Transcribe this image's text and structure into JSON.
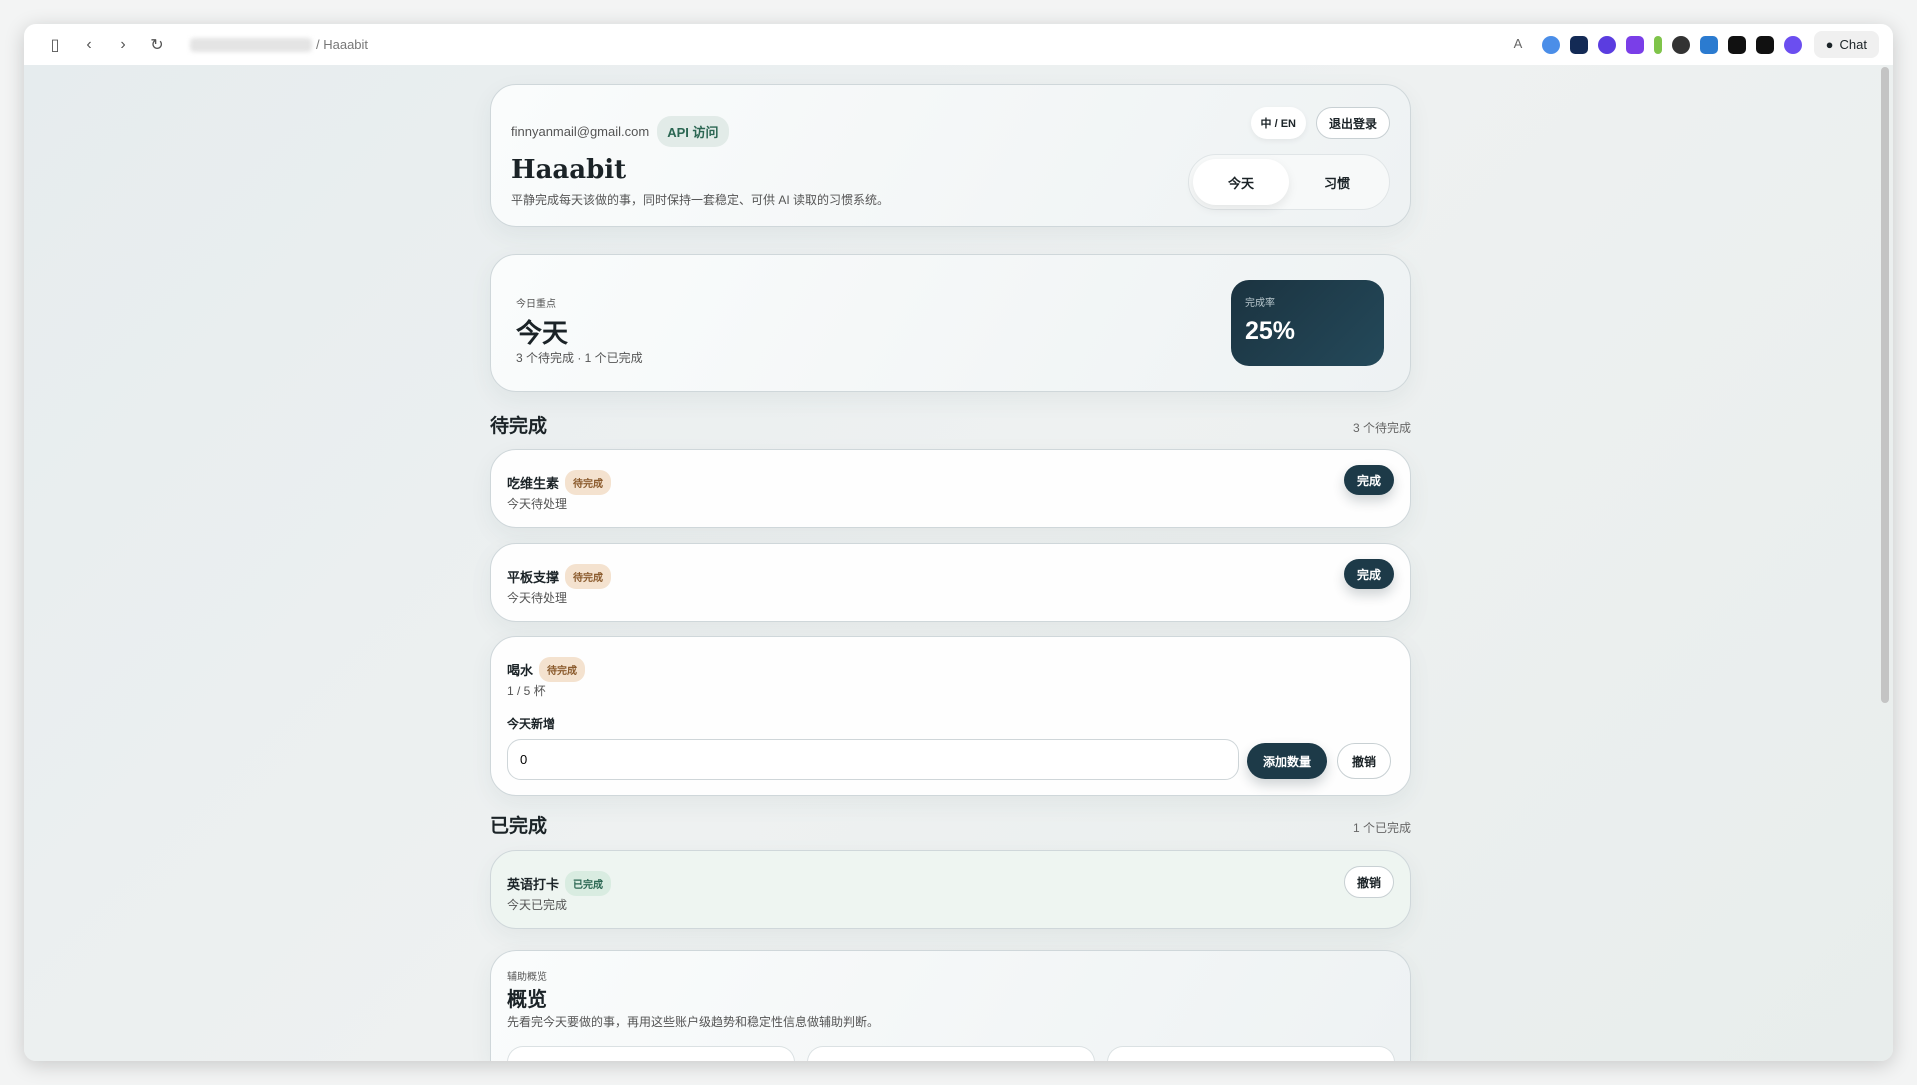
{
  "browser": {
    "url_path": "/ Haaabit",
    "chat_label": "Chat"
  },
  "header": {
    "email": "finnyanmail@gmail.com",
    "api_badge": "API 访问",
    "lang_toggle": "中 / EN",
    "logout": "退出登录",
    "brand": "Haaabit",
    "tagline": "平静完成每天该做的事，同时保持一套稳定、可供 AI 读取的习惯系统。",
    "tabs": [
      {
        "label": "今天",
        "active": true
      },
      {
        "label": "习惯",
        "active": false
      }
    ]
  },
  "summary": {
    "kicker": "今日重点",
    "title": "今天",
    "subtitle": "3 个待完成 · 1 个已完成",
    "rate_label": "完成率",
    "rate_value": "25%"
  },
  "pending": {
    "title": "待完成",
    "count": "3 个待完成",
    "items": [
      {
        "name": "吃维生素",
        "badge": "待完成",
        "status": "今天待处理",
        "action": "完成"
      },
      {
        "name": "平板支撑",
        "badge": "待完成",
        "status": "今天待处理",
        "action": "完成"
      },
      {
        "name": "喝水",
        "badge": "待完成",
        "status": "1 / 5 杯",
        "add_label": "今天新增",
        "input_value": "0",
        "add_button": "添加数量",
        "undo": "撤销"
      }
    ]
  },
  "completed": {
    "title": "已完成",
    "count": "1 个已完成",
    "items": [
      {
        "name": "英语打卡",
        "badge": "已完成",
        "status": "今天已完成",
        "action": "撤销"
      }
    ]
  },
  "overview": {
    "kicker": "辅助概览",
    "title": "概览",
    "subtitle": "先看完今天要做的事，再用这些账户级趋势和稳定性信息做辅助判断。"
  }
}
